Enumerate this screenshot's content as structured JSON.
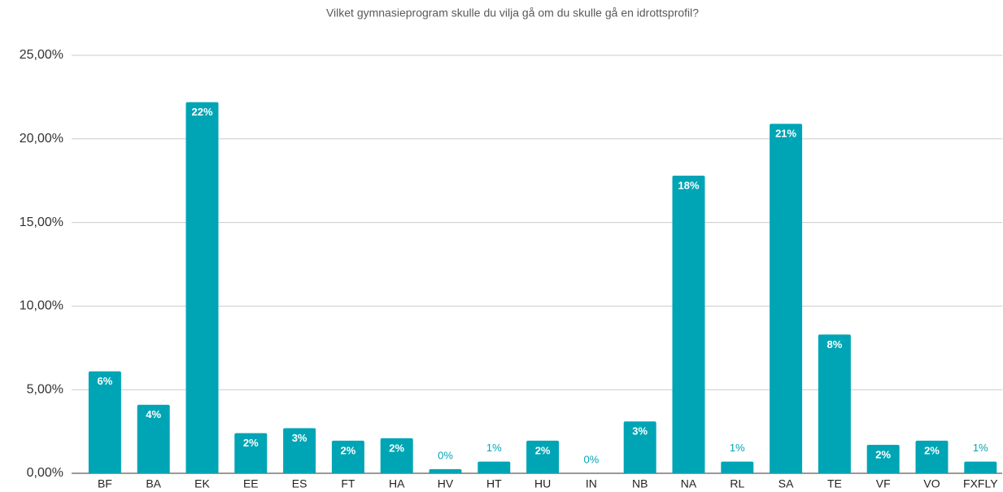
{
  "chart_data": {
    "type": "bar",
    "title": "Vilket gymnasieprogram skulle du vilja gå om du skulle gå en idrottsprofil?",
    "categories": [
      "BF",
      "BA",
      "EK",
      "EE",
      "ES",
      "FT",
      "HA",
      "HV",
      "HT",
      "HU",
      "IN",
      "NB",
      "NA",
      "RL",
      "SA",
      "TE",
      "VF",
      "VO",
      "FXFLY"
    ],
    "values": [
      6.1,
      4.1,
      22.2,
      2.4,
      2.7,
      1.95,
      2.1,
      0.25,
      0.7,
      1.95,
      0,
      3.1,
      17.8,
      0.7,
      20.9,
      8.3,
      1.7,
      1.95,
      0.7
    ],
    "value_labels": [
      "6%",
      "4%",
      "22%",
      "2%",
      "3%",
      "2%",
      "2%",
      "0%",
      "1%",
      "2%",
      "0%",
      "3%",
      "18%",
      "1%",
      "21%",
      "8%",
      "2%",
      "2%",
      "1%"
    ],
    "color": "#00a5b5",
    "ylim": [
      0,
      25
    ],
    "yticks": [
      {
        "value": 0,
        "label": "0,00%"
      },
      {
        "value": 5,
        "label": "5,00%"
      },
      {
        "value": 10,
        "label": "10,00%"
      },
      {
        "value": 15,
        "label": "15,00%"
      },
      {
        "value": 20,
        "label": "20,00%"
      },
      {
        "value": 25,
        "label": "25,00%"
      }
    ],
    "grid": true
  }
}
